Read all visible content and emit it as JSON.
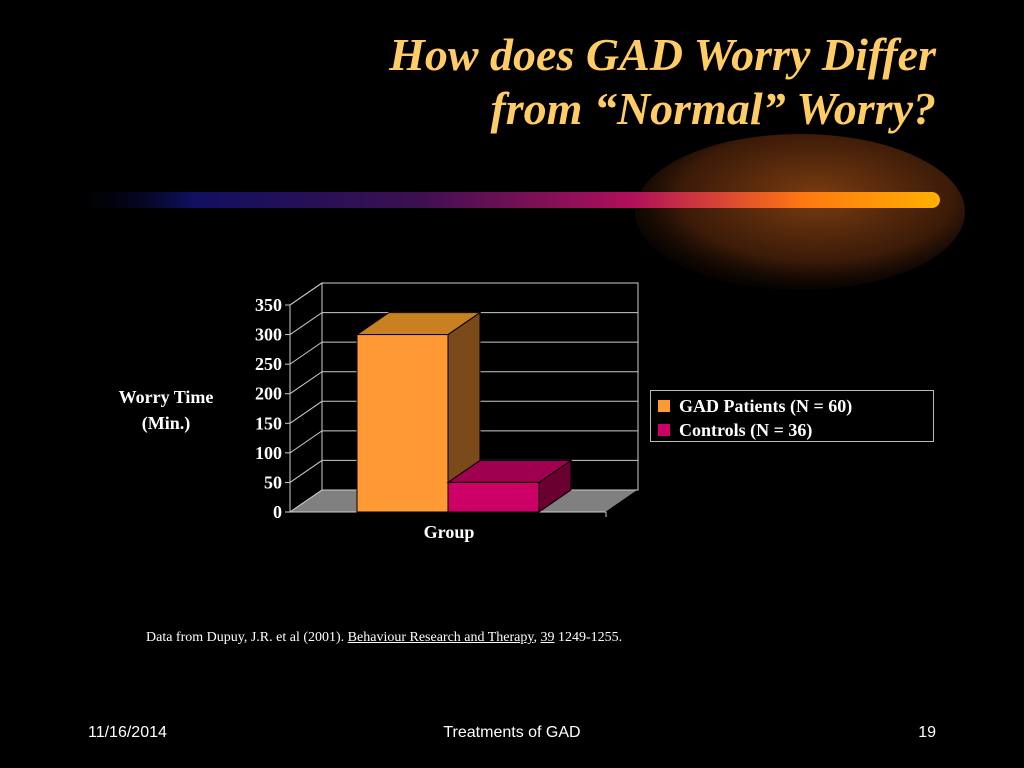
{
  "slide": {
    "title_line1": "How does GAD Worry Differ",
    "title_line2": "from “Normal” Worry?",
    "citation": {
      "prefix": "Data from Dupuy, J.R. et al (2001). ",
      "journal": "Behaviour Research and Therapy",
      "sep": ", ",
      "volume": "39",
      "pages": " 1249-1255."
    },
    "footer": {
      "date": "11/16/2014",
      "center": "Treatments of GAD",
      "page": "19"
    }
  },
  "colors": {
    "title": "#ffcc66",
    "gad": "#ff9933",
    "controls": "#cc0066",
    "floor": "#808080"
  },
  "chart_data": {
    "type": "bar",
    "categories": [
      "Group"
    ],
    "series": [
      {
        "name": "GAD Patients (N = 60)",
        "values": [
          300
        ]
      },
      {
        "name": "Controls (N = 36)",
        "values": [
          50
        ]
      }
    ],
    "ylabel_line1": "Worry Time",
    "ylabel_line2": "(Min.)",
    "xlabel": "Group",
    "ylim": [
      0,
      350
    ],
    "yticks": [
      "0",
      "50",
      "100",
      "150",
      "200",
      "250",
      "300",
      "350"
    ],
    "grid": true,
    "legend": "right",
    "style": "3d"
  }
}
